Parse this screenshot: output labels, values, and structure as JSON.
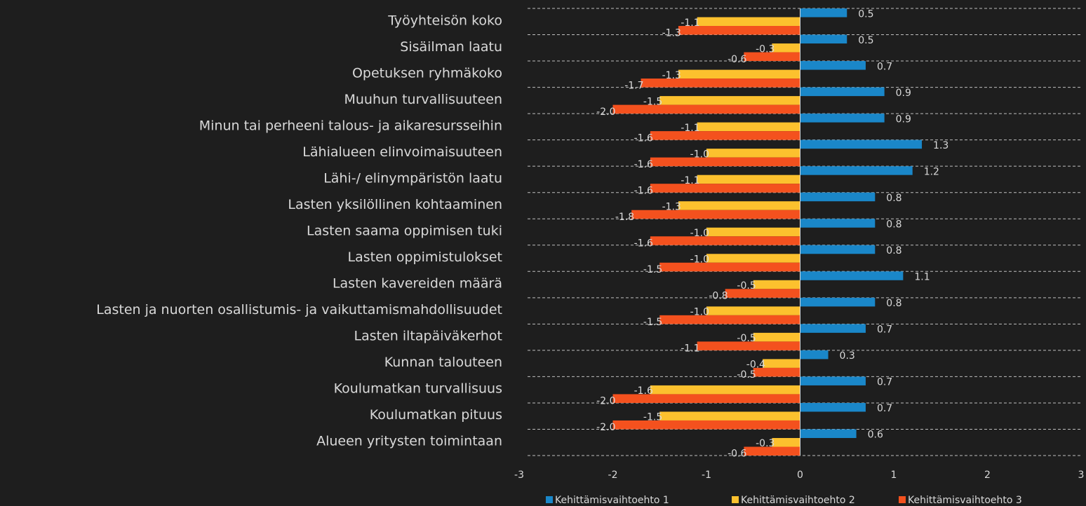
{
  "chart_data": {
    "type": "bar",
    "orientation": "horizontal",
    "categories": [
      "Työyhteisön koko",
      "Sisäilman laatu",
      "Opetuksen ryhmäkoko",
      "Muuhun turvallisuuteen",
      "Minun tai perheeni talous- ja aikaresursseihin",
      "Lähialueen elinvoimaisuuteen",
      "Lähi-/ elinympäristön laatu",
      "Lasten yksilöllinen kohtaaminen",
      "Lasten saama oppimisen tuki",
      "Lasten oppimistulokset",
      "Lasten kavereiden määrä",
      "Lasten ja nuorten osallistumis- ja vaikuttamismahdollisuudet",
      "Lasten iltapäiväkerhot",
      "Kunnan talouteen",
      "Koulumatkan turvallisuus",
      "Koulumatkan pituus",
      "Alueen yritysten toimintaan"
    ],
    "series": [
      {
        "name": "Kehittämisvaihtoehto 1",
        "color": "#1a87c9",
        "values": [
          0.5,
          0.5,
          0.7,
          0.9,
          0.9,
          1.3,
          1.2,
          0.8,
          0.8,
          0.8,
          1.1,
          0.8,
          0.7,
          0.3,
          0.7,
          0.7,
          0.6
        ],
        "value_labels": [
          "0.5",
          "0.5",
          "0.7",
          "0.9",
          "0.9",
          "1.3",
          "1.2",
          "0.8",
          "0.8",
          "0.8",
          "1.1",
          "0.8",
          "0.7",
          "0.3",
          "0.7",
          "0.7",
          "0.6"
        ]
      },
      {
        "name": "Kehittämisvaihtoehto 2",
        "color": "#fcc12e",
        "values": [
          -1.1,
          -0.3,
          -1.3,
          -1.5,
          -1.1,
          -1.0,
          -1.1,
          -1.3,
          -1.0,
          -1.0,
          -0.5,
          -1.0,
          -0.5,
          -0.4,
          -1.6,
          -1.5,
          -0.3
        ],
        "value_labels": [
          "-1.1",
          "-0.3",
          "-1.3",
          "-1.5",
          "-1.1",
          "-1.0",
          "-1.1",
          "-1.3",
          "-1.0",
          "-1.0",
          "-0.5",
          "-1.0",
          "-0.5",
          "-0.4",
          "-1.6",
          "-1.5",
          "-0.3"
        ]
      },
      {
        "name": "Kehittämisvaihtoehto 3",
        "color": "#f4511e",
        "values": [
          -1.3,
          -0.6,
          -1.7,
          -2.0,
          -1.6,
          -1.6,
          -1.6,
          -1.8,
          -1.6,
          -1.5,
          -0.8,
          -1.5,
          -1.1,
          -0.5,
          -2.0,
          -2.0,
          -0.6
        ],
        "value_labels": [
          "-1.3",
          "-0.6",
          "-1.7",
          "-2.0",
          "-1.6",
          "-1.6",
          "-1.6",
          "-1.8",
          "-1.6",
          "-1.5",
          "-0.8",
          "-1.5",
          "-1.1",
          "-0.5",
          "-2.0",
          "-2.0",
          "-0.6"
        ]
      }
    ],
    "xlim": [
      -3,
      3
    ],
    "xticks": [
      -3,
      -2,
      -1,
      0,
      1,
      2,
      3
    ],
    "legend": "bottom"
  }
}
